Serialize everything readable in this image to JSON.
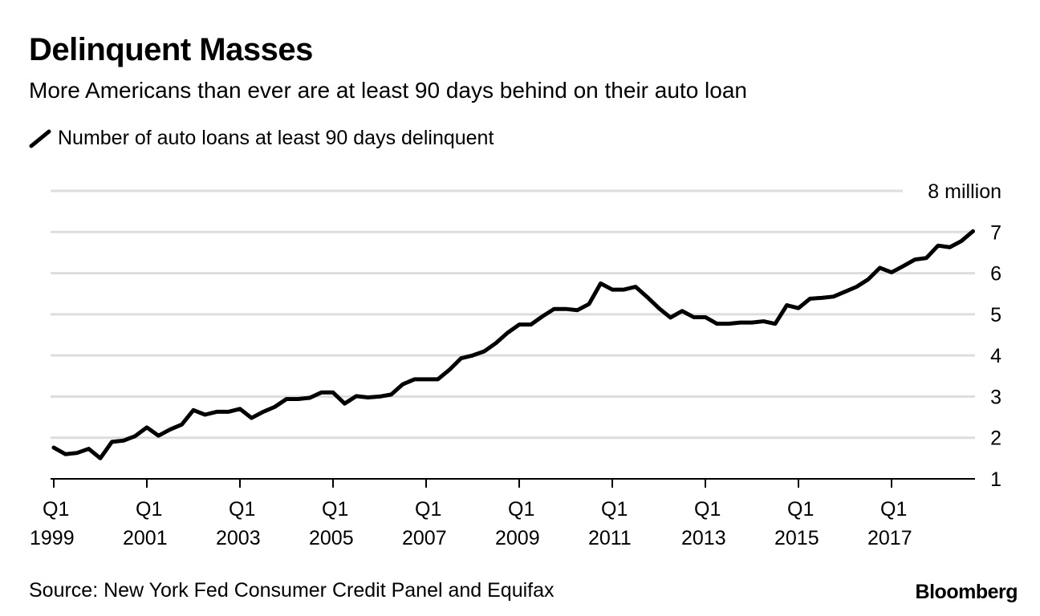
{
  "title": "Delinquent Masses",
  "subtitle": "More Americans than ever are at least 90 days behind on their auto loan",
  "source": "Source: New York Fed Consumer Credit Panel and Equifax",
  "logo": "Bloomberg",
  "chart_data": {
    "type": "line",
    "title": "Delinquent Masses",
    "subtitle": "More Americans than ever are at least 90 days behind on their auto loan",
    "ylabel_unit": "million",
    "ylim": [
      1,
      8
    ],
    "yticks": [
      1,
      2,
      3,
      4,
      5,
      6,
      7,
      8
    ],
    "ytick_labels": [
      "1",
      "2",
      "3",
      "4",
      "5",
      "6",
      "7",
      "8 million"
    ],
    "grid": true,
    "legend_placement": "top-left",
    "line_color": "#000000",
    "grid_color": "#dddddd",
    "x_start": "Q1 1999",
    "x_frequency": "quarterly",
    "xticks": [
      {
        "q": "Q1",
        "year": "1999"
      },
      {
        "q": "Q1",
        "year": "2001"
      },
      {
        "q": "Q1",
        "year": "2003"
      },
      {
        "q": "Q1",
        "year": "2005"
      },
      {
        "q": "Q1",
        "year": "2007"
      },
      {
        "q": "Q1",
        "year": "2009"
      },
      {
        "q": "Q1",
        "year": "2011"
      },
      {
        "q": "Q1",
        "year": "2013"
      },
      {
        "q": "Q1",
        "year": "2015"
      },
      {
        "q": "Q1",
        "year": "2017"
      }
    ],
    "series": [
      {
        "name": "Number of auto loans at least 90 days delinquent",
        "values": [
          1.76,
          1.6,
          1.63,
          1.73,
          1.5,
          1.9,
          1.93,
          2.04,
          2.25,
          2.05,
          2.2,
          2.32,
          2.67,
          2.56,
          2.63,
          2.63,
          2.7,
          2.48,
          2.63,
          2.75,
          2.94,
          2.94,
          2.97,
          3.1,
          3.1,
          2.83,
          3.01,
          2.98,
          3.0,
          3.05,
          3.3,
          3.42,
          3.42,
          3.42,
          3.65,
          3.93,
          4.0,
          4.1,
          4.3,
          4.55,
          4.75,
          4.75,
          4.95,
          5.13,
          5.13,
          5.1,
          5.25,
          5.75,
          5.6,
          5.6,
          5.67,
          5.42,
          5.15,
          4.92,
          5.08,
          4.93,
          4.93,
          4.77,
          4.77,
          4.8,
          4.8,
          4.83,
          4.77,
          5.22,
          5.15,
          5.38,
          5.4,
          5.43,
          5.55,
          5.67,
          5.85,
          6.13,
          6.02,
          6.17,
          6.33,
          6.37,
          6.67,
          6.63,
          6.78,
          7.02
        ]
      }
    ]
  }
}
